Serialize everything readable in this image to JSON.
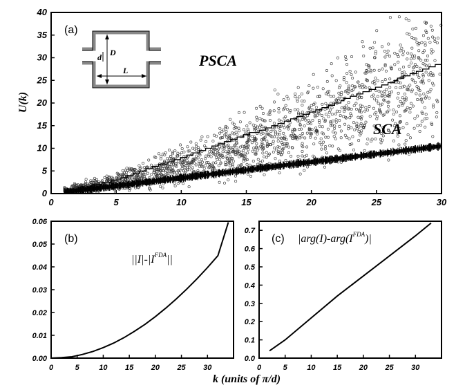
{
  "chart_data": [
    {
      "panel": "(a)",
      "type": "scatter",
      "ylabel": "U(k)",
      "xlim": [
        0,
        30
      ],
      "ylim": [
        0,
        40
      ],
      "xticks": [
        "0",
        "5",
        "10",
        "15",
        "20",
        "25",
        "30"
      ],
      "yticks": [
        "0",
        "5",
        "10",
        "15",
        "20",
        "25",
        "30",
        "35",
        "40"
      ],
      "grid": false,
      "inset_labels": [
        "d",
        "D",
        "L"
      ],
      "series": [
        {
          "name": "PSCA",
          "kind": "scatter-open-circles",
          "x_range": [
            1,
            30
          ],
          "center_line": [
            [
              1,
              0.5
            ],
            [
              5,
              2.5
            ],
            [
              10,
              6
            ],
            [
              15,
              10.5
            ],
            [
              20,
              15.5
            ],
            [
              25,
              21.5
            ],
            [
              30,
              28
            ]
          ],
          "spread_note": "points spread above and below the line"
        },
        {
          "name": "",
          "kind": "staircase-line",
          "points": [
            [
              1,
              0.5
            ],
            [
              5,
              3
            ],
            [
              10,
              8
            ],
            [
              15,
              13
            ],
            [
              20,
              18
            ],
            [
              25,
              23.5
            ],
            [
              30,
              29
            ]
          ]
        },
        {
          "name": "SCA",
          "kind": "dense-band",
          "points": [
            [
              1,
              0.3
            ],
            [
              30,
              10.5
            ]
          ],
          "width": 0.8
        }
      ]
    },
    {
      "panel": "(b)",
      "type": "line",
      "title": "||I|-|I^FDA||",
      "xlim": [
        0,
        35
      ],
      "ylim": [
        0,
        0.06
      ],
      "xticks": [
        "0",
        "5",
        "10",
        "15",
        "20",
        "25",
        "30"
      ],
      "yticks": [
        "0.00",
        "0.01",
        "0.02",
        "0.03",
        "0.04",
        "0.05",
        "0.06"
      ],
      "series": [
        {
          "name": "||I|-|I^FDA||",
          "x": [
            0,
            2,
            4,
            6,
            8,
            10,
            12,
            14,
            16,
            18,
            20,
            22,
            24,
            26,
            28,
            30,
            32,
            34
          ],
          "y": [
            0.0,
            0.0002,
            0.0006,
            0.0016,
            0.0029,
            0.0046,
            0.0066,
            0.009,
            0.0118,
            0.0148,
            0.0182,
            0.0219,
            0.0259,
            0.0302,
            0.0348,
            0.0397,
            0.0449,
            0.0595
          ]
        }
      ]
    },
    {
      "panel": "(c)",
      "type": "line",
      "title": "|arg(I)-arg(I^FDA)|",
      "xlim": [
        0,
        35
      ],
      "ylim": [
        0,
        0.75
      ],
      "xticks": [
        "0",
        "5",
        "10",
        "15",
        "20",
        "25",
        "30"
      ],
      "yticks": [
        "0.0",
        "0.1",
        "0.2",
        "0.3",
        "0.4",
        "0.5",
        "0.6",
        "0.7"
      ],
      "series": [
        {
          "name": "|arg(I)-arg(I^FDA)|",
          "x": [
            2,
            5,
            10,
            15,
            20,
            25,
            30,
            33
          ],
          "y": [
            0.04,
            0.1,
            0.22,
            0.34,
            0.45,
            0.56,
            0.67,
            0.74
          ]
        }
      ]
    }
  ],
  "labels": {
    "panel_a": "(a)",
    "panel_b": "(b)",
    "panel_c": "(c)",
    "psca": "PSCA",
    "sca": "SCA",
    "ylabel_a": "U(k)",
    "xlabel": "k (units of π/d)",
    "b_formula_main": "||I|-|I",
    "b_formula_sup": "FDA",
    "b_formula_end": "||",
    "c_formula_main": "|arg(I)-arg(I",
    "c_formula_sup": "FDA",
    "c_formula_end": ")|",
    "inset_d": "d",
    "inset_D": "D",
    "inset_L": "L"
  }
}
